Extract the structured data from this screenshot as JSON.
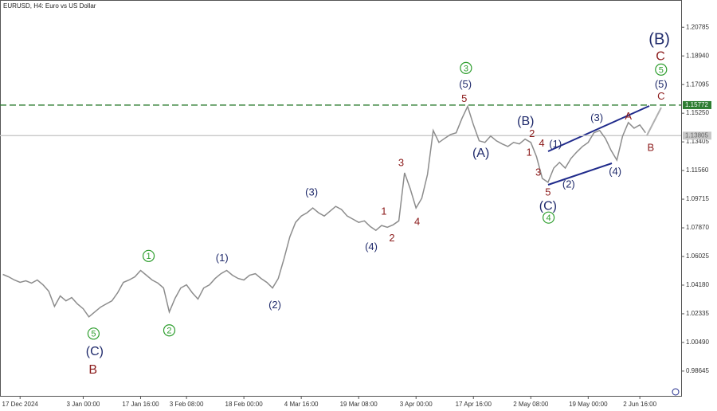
{
  "chart_data": {
    "type": "line",
    "title": "EURUSD, H4:  Euro vs US Dollar",
    "color": "#8c8c8c",
    "grid": false,
    "xlim": [
      -0.5,
      118.2
    ],
    "ylim": [
      0.9705,
      1.2254
    ],
    "yticks": [
      1.20785,
      {
        "value": 1.1894,
        "label": "1.18940"
      },
      1.17095,
      {
        "value": 1.1525,
        "label": "1.15250"
      },
      1.13405,
      {
        "value": 1.1156,
        "label": "1.11560"
      },
      1.09715,
      {
        "value": 1.0787,
        "label": "1.07870"
      },
      1.06025,
      {
        "value": 1.0418,
        "label": "1.04180"
      },
      1.02335,
      {
        "value": 1.0049,
        "label": "1.00490"
      },
      0.98645
    ],
    "categories": [
      null,
      null,
      null,
      "17 Dec 2024",
      null,
      null,
      null,
      null,
      null,
      null,
      null,
      null,
      null,
      null,
      "3 Jan 00:00",
      null,
      null,
      null,
      null,
      null,
      null,
      null,
      null,
      null,
      "17 Jan 16:00",
      null,
      null,
      null,
      null,
      null,
      null,
      null,
      "3 Feb 08:00",
      null,
      null,
      null,
      null,
      null,
      null,
      null,
      null,
      null,
      "18 Feb 00:00",
      null,
      null,
      null,
      null,
      null,
      null,
      null,
      null,
      null,
      "4 Mar 16:00",
      null,
      null,
      null,
      null,
      null,
      null,
      null,
      null,
      null,
      "19 Mar 08:00",
      null,
      null,
      null,
      null,
      null,
      null,
      null,
      null,
      null,
      "3 Apr 00:00",
      null,
      null,
      null,
      null,
      null,
      null,
      null,
      null,
      null,
      "17 Apr 16:00",
      null,
      null,
      null,
      null,
      null,
      null,
      null,
      null,
      null,
      "2 May 08:00",
      null,
      null,
      null,
      null,
      null,
      null,
      null,
      null,
      null,
      "19 May 00:00",
      null,
      null,
      null,
      null,
      null,
      null,
      null,
      null,
      "2 Jun 16:00",
      null
    ],
    "values": [
      1.0487,
      1.0472,
      1.0451,
      1.0436,
      1.0446,
      1.0431,
      1.0451,
      1.042,
      1.0379,
      1.0281,
      1.0348,
      1.0317,
      1.0338,
      1.0297,
      1.0266,
      1.0214,
      1.0245,
      1.0276,
      1.0297,
      1.0317,
      1.0369,
      1.0436,
      1.0451,
      1.0472,
      1.0513,
      1.0482,
      1.0451,
      1.0431,
      1.04,
      1.0245,
      1.0333,
      1.04,
      1.042,
      1.0369,
      1.0328,
      1.04,
      1.042,
      1.0461,
      1.0492,
      1.0513,
      1.0482,
      1.0461,
      1.0451,
      1.0482,
      1.0492,
      1.0461,
      1.0436,
      1.04,
      1.0461,
      1.059,
      1.0729,
      1.0822,
      1.0863,
      1.0884,
      1.0915,
      1.0884,
      1.0863,
      1.0894,
      1.0925,
      1.0905,
      1.0863,
      1.0843,
      1.0822,
      1.0832,
      1.0796,
      1.0771,
      1.0802,
      1.0791,
      1.0806,
      1.0832,
      1.1141,
      1.1038,
      1.0915,
      1.0977,
      1.1131,
      1.1414,
      1.1337,
      1.1363,
      1.1388,
      1.1399,
      1.1491,
      1.1569,
      1.145,
      1.1347,
      1.1337,
      1.1378,
      1.1347,
      1.1327,
      1.1311,
      1.1337,
      1.1327,
      1.1358,
      1.1337,
      1.1244,
      1.1105,
      1.108,
      1.1172,
      1.1208,
      1.1172,
      1.1234,
      1.1275,
      1.1311,
      1.1337,
      1.1399,
      1.1414,
      1.1363,
      1.1285,
      1.1223,
      1.1378,
      1.1465,
      1.1429,
      1.145,
      1.1399
    ],
    "levels": [
      {
        "value": 1.15772,
        "color": "#2e7d32",
        "dashed": true
      },
      {
        "value": 1.13805,
        "color": "#c8c8c8",
        "dashed": false
      }
    ],
    "annotations": [
      {
        "label": "1",
        "x": 25.4,
        "y": 1.0606,
        "color": "#2e9e2e",
        "circled": true
      },
      {
        "label": "2",
        "x": 29.0,
        "y": 1.0127,
        "color": "#2e9e2e",
        "circled": true
      },
      {
        "label": "5",
        "x": 15.8,
        "y": 1.0106,
        "color": "#2e9e2e",
        "circled": true
      },
      {
        "label": "3",
        "x": 80.7,
        "y": 1.1816,
        "color": "#2e9e2e",
        "circled": true
      },
      {
        "label": "4",
        "x": 95.1,
        "y": 1.0853,
        "color": "#2e9e2e",
        "circled": true
      },
      {
        "label": "5",
        "x": 114.7,
        "y": 1.1806,
        "color": "#2e9e2e",
        "circled": true
      },
      {
        "label": "(C)",
        "x": 16.0,
        "y": 0.9993,
        "color": "#1f2a6b",
        "size": "large"
      },
      {
        "label": "(1)",
        "x": 38.2,
        "y": 1.0595,
        "color": "#1f2a6b"
      },
      {
        "label": "(2)",
        "x": 47.4,
        "y": 1.0291,
        "color": "#1f2a6b"
      },
      {
        "label": "(3)",
        "x": 53.8,
        "y": 1.1018,
        "color": "#1f2a6b"
      },
      {
        "label": "(4)",
        "x": 64.2,
        "y": 1.0667,
        "color": "#1f2a6b"
      },
      {
        "label": "(5)",
        "x": 80.6,
        "y": 1.1713,
        "color": "#1f2a6b"
      },
      {
        "label": "(A)",
        "x": 83.3,
        "y": 1.127,
        "color": "#1f2a6b",
        "size": "large"
      },
      {
        "label": "(B)",
        "x": 91.1,
        "y": 1.1476,
        "color": "#1f2a6b",
        "size": "large"
      },
      {
        "label": "(C)",
        "x": 95.0,
        "y": 1.093,
        "color": "#1f2a6b",
        "size": "large"
      },
      {
        "label": "(1)",
        "x": 96.3,
        "y": 1.1327,
        "color": "#1f2a6b"
      },
      {
        "label": "(2)",
        "x": 98.6,
        "y": 1.1069,
        "color": "#1f2a6b"
      },
      {
        "label": "(3)",
        "x": 103.5,
        "y": 1.1497,
        "color": "#1f2a6b"
      },
      {
        "label": "(4)",
        "x": 106.7,
        "y": 1.1152,
        "color": "#1f2a6b"
      },
      {
        "label": "(5)",
        "x": 114.7,
        "y": 1.1713,
        "color": "#1f2a6b"
      },
      {
        "label": "(B)",
        "x": 114.4,
        "y": 1.2001,
        "color": "#1f2a6b",
        "size": "xlarge"
      },
      {
        "label": "B",
        "x": 15.7,
        "y": 0.9875,
        "color": "#8b1a1a",
        "size": "large"
      },
      {
        "label": "1",
        "x": 66.4,
        "y": 1.0894,
        "color": "#8b1a1a"
      },
      {
        "label": "2",
        "x": 67.8,
        "y": 1.0724,
        "color": "#8b1a1a"
      },
      {
        "label": "3",
        "x": 69.4,
        "y": 1.1208,
        "color": "#8b1a1a"
      },
      {
        "label": "4",
        "x": 72.2,
        "y": 1.0827,
        "color": "#8b1a1a"
      },
      {
        "label": "5",
        "x": 80.4,
        "y": 1.162,
        "color": "#8b1a1a"
      },
      {
        "label": "2",
        "x": 92.2,
        "y": 1.1394,
        "color": "#8b1a1a"
      },
      {
        "label": "4",
        "x": 93.9,
        "y": 1.1332,
        "color": "#8b1a1a"
      },
      {
        "label": "1",
        "x": 91.7,
        "y": 1.1275,
        "color": "#8b1a1a"
      },
      {
        "label": "3",
        "x": 93.3,
        "y": 1.1146,
        "color": "#8b1a1a"
      },
      {
        "label": "5",
        "x": 95.0,
        "y": 1.1018,
        "color": "#8b1a1a"
      },
      {
        "label": "A",
        "x": 109.0,
        "y": 1.1507,
        "color": "#8b1a1a"
      },
      {
        "label": "B",
        "x": 112.9,
        "y": 1.1306,
        "color": "#8b1a1a"
      },
      {
        "label": "C",
        "x": 114.7,
        "y": 1.1636,
        "color": "#8b1a1a"
      },
      {
        "label": "C",
        "x": 114.6,
        "y": 1.1893,
        "color": "#8b1a1a",
        "size": "large"
      }
    ]
  }
}
